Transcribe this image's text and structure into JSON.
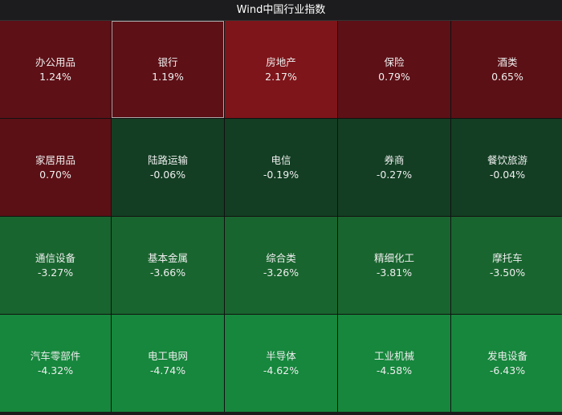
{
  "header": {
    "title": "Wind中国行业指数"
  },
  "tiles": [
    {
      "name": "办公用品",
      "change": "1.24%",
      "color": "#5d1016"
    },
    {
      "name": "银行",
      "change": "1.19%",
      "color": "#5d1016"
    },
    {
      "name": "房地产",
      "change": "2.17%",
      "color": "#7e151a"
    },
    {
      "name": "保险",
      "change": "0.79%",
      "color": "#5d1016"
    },
    {
      "name": "酒类",
      "change": "0.65%",
      "color": "#5b1015"
    },
    {
      "name": "家居用品",
      "change": "0.70%",
      "color": "#5b1015"
    },
    {
      "name": "陆路运输",
      "change": "-0.06%",
      "color": "#133e23"
    },
    {
      "name": "电信",
      "change": "-0.19%",
      "color": "#133e23"
    },
    {
      "name": "券商",
      "change": "-0.27%",
      "color": "#133e23"
    },
    {
      "name": "餐饮旅游",
      "change": "-0.04%",
      "color": "#133e23"
    },
    {
      "name": "通信设备",
      "change": "-3.27%",
      "color": "#19652f"
    },
    {
      "name": "基本金属",
      "change": "-3.66%",
      "color": "#19652f"
    },
    {
      "name": "综合类",
      "change": "-3.26%",
      "color": "#19652f"
    },
    {
      "name": "精细化工",
      "change": "-3.81%",
      "color": "#19652f"
    },
    {
      "name": "摩托车",
      "change": "-3.50%",
      "color": "#19652f"
    },
    {
      "name": "汽车零部件",
      "change": "-4.32%",
      "color": "#16873d"
    },
    {
      "name": "电工电网",
      "change": "-4.74%",
      "color": "#16873d"
    },
    {
      "name": "半导体",
      "change": "-4.62%",
      "color": "#16873d"
    },
    {
      "name": "工业机械",
      "change": "-4.58%",
      "color": "#16873d"
    },
    {
      "name": "发电设备",
      "change": "-6.43%",
      "color": "#16873d"
    }
  ]
}
